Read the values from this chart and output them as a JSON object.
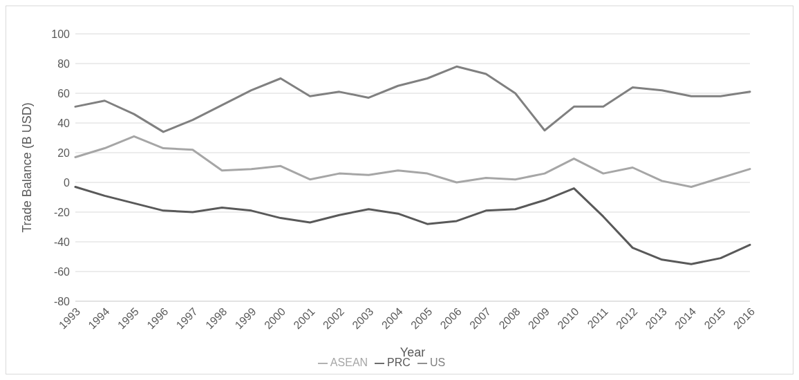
{
  "chart_data": {
    "type": "line",
    "xlabel": "Year",
    "ylabel": "Trade Balance (B USD)",
    "categories": [
      "1993",
      "1994",
      "1995",
      "1996",
      "1997",
      "1998",
      "1999",
      "2000",
      "2001",
      "2002",
      "2003",
      "2004",
      "2005",
      "2006",
      "2007",
      "2008",
      "2009",
      "2010",
      "2011",
      "2012",
      "2013",
      "2014",
      "2015",
      "2016"
    ],
    "series": [
      {
        "name": "PRC",
        "color": "#595959",
        "values": [
          -3,
          -9,
          -14,
          -19,
          -20,
          -17,
          -19,
          -24,
          -27,
          -22,
          -18,
          -21,
          -28,
          -26,
          -19,
          -18,
          -12,
          -4,
          -23,
          -44,
          -52,
          -55,
          -51,
          -42
        ]
      },
      {
        "name": "ASEAN",
        "color": "#a6a6a6",
        "values": [
          17,
          23,
          31,
          23,
          22,
          8,
          9,
          11,
          2,
          6,
          5,
          8,
          6,
          0,
          3,
          2,
          6,
          16,
          6,
          10,
          1,
          -3,
          3,
          9
        ]
      },
      {
        "name": "US",
        "color": "#808080",
        "values": [
          51,
          55,
          46,
          34,
          42,
          52,
          62,
          70,
          58,
          61,
          57,
          65,
          70,
          78,
          73,
          60,
          35,
          51,
          51,
          64,
          62,
          58,
          58,
          61
        ]
      }
    ],
    "ylim": [
      -80,
      100
    ],
    "yticks": [
      -80,
      -60,
      -40,
      -20,
      0,
      20,
      40,
      60,
      80,
      100
    ],
    "grid": "y",
    "legend": "bottom",
    "marker": "none",
    "line_style": "solid"
  }
}
